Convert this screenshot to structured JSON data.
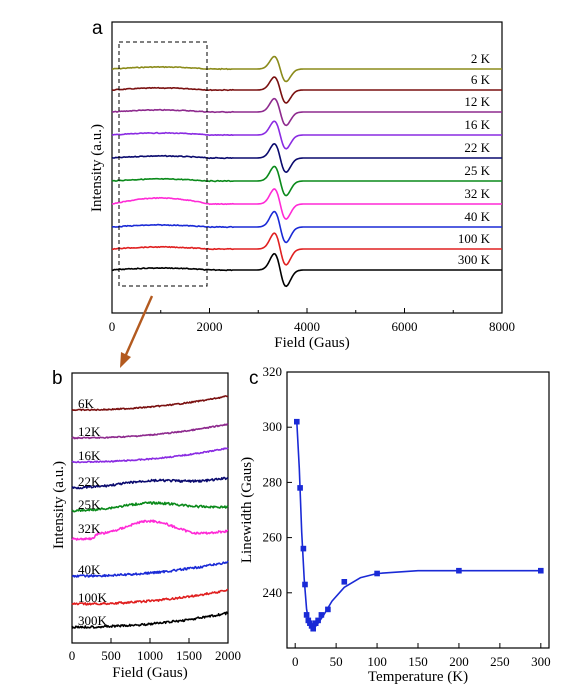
{
  "panel_letters": {
    "a": "a",
    "b": "b",
    "c": "c"
  },
  "chart_data": [
    {
      "panel": "a",
      "type": "line",
      "xlabel": "Field (Gaus)",
      "ylabel": "Intensity (a.u.)",
      "xlim": [
        0,
        8000
      ],
      "xticks": [
        "0",
        "2000",
        "4000",
        "6000",
        "8000"
      ],
      "resonance_field": 3450,
      "series": [
        {
          "name": "2 K",
          "color": "#8b8b1a"
        },
        {
          "name": "6 K",
          "color": "#7a1010"
        },
        {
          "name": "12 K",
          "color": "#8e2a8e"
        },
        {
          "name": "16 K",
          "color": "#8a2be2"
        },
        {
          "name": "22 K",
          "color": "#0a0a6e"
        },
        {
          "name": "25 K",
          "color": "#0a8a1a"
        },
        {
          "name": "32 K",
          "color": "#ff2ad6"
        },
        {
          "name": "40 K",
          "color": "#1a2ad6"
        },
        {
          "name": "100 K",
          "color": "#e02020"
        },
        {
          "name": "300 K",
          "color": "#000000"
        }
      ],
      "annotation": "dashed box 0-1900 Gaus, enlarged in panel b"
    },
    {
      "panel": "b",
      "type": "line",
      "xlabel": "Field (Gaus)",
      "ylabel": "Intensity (a.u.)",
      "xlim": [
        0,
        2000
      ],
      "xticks": [
        "0",
        "500",
        "1000",
        "1500",
        "2000"
      ],
      "series": [
        {
          "name": "6K",
          "color": "#7a1010"
        },
        {
          "name": "12K",
          "color": "#8e2a8e"
        },
        {
          "name": "16K",
          "color": "#8a2be2"
        },
        {
          "name": "22K",
          "color": "#0a0a6e"
        },
        {
          "name": "25K",
          "color": "#0a8a1a"
        },
        {
          "name": "32K",
          "color": "#ff2ad6"
        },
        {
          "name": "40K",
          "color": "#1a2ad6"
        },
        {
          "name": "100K",
          "color": "#e02020"
        },
        {
          "name": "300K",
          "color": "#000000"
        }
      ]
    },
    {
      "panel": "c",
      "type": "scatter",
      "xlabel": "Temperature (K)",
      "ylabel": "Linewidth (Gaus)",
      "xlim": [
        -10,
        310
      ],
      "ylim": [
        220,
        320
      ],
      "xticks": [
        "0",
        "50",
        "100",
        "150",
        "200",
        "250",
        "300"
      ],
      "yticks": [
        "240",
        "260",
        "280",
        "300",
        "320"
      ],
      "color": "#1a2ad6",
      "points": [
        {
          "x": 2,
          "y": 302
        },
        {
          "x": 6,
          "y": 278
        },
        {
          "x": 10,
          "y": 256
        },
        {
          "x": 12,
          "y": 243
        },
        {
          "x": 14,
          "y": 232
        },
        {
          "x": 16,
          "y": 230
        },
        {
          "x": 18,
          "y": 229
        },
        {
          "x": 20,
          "y": 228
        },
        {
          "x": 22,
          "y": 227
        },
        {
          "x": 25,
          "y": 229
        },
        {
          "x": 28,
          "y": 230
        },
        {
          "x": 32,
          "y": 232
        },
        {
          "x": 40,
          "y": 234
        },
        {
          "x": 60,
          "y": 244
        },
        {
          "x": 100,
          "y": 247
        },
        {
          "x": 200,
          "y": 248
        },
        {
          "x": 300,
          "y": 248
        }
      ],
      "fit_curve": [
        {
          "x": 2,
          "y": 302
        },
        {
          "x": 5,
          "y": 285
        },
        {
          "x": 8,
          "y": 262
        },
        {
          "x": 11,
          "y": 245
        },
        {
          "x": 14,
          "y": 234
        },
        {
          "x": 17,
          "y": 229
        },
        {
          "x": 20,
          "y": 227
        },
        {
          "x": 24,
          "y": 227.5
        },
        {
          "x": 28,
          "y": 229
        },
        {
          "x": 35,
          "y": 232
        },
        {
          "x": 45,
          "y": 237
        },
        {
          "x": 60,
          "y": 242
        },
        {
          "x": 80,
          "y": 245.5
        },
        {
          "x": 100,
          "y": 247
        },
        {
          "x": 150,
          "y": 248
        },
        {
          "x": 200,
          "y": 248
        },
        {
          "x": 300,
          "y": 248
        }
      ]
    }
  ]
}
